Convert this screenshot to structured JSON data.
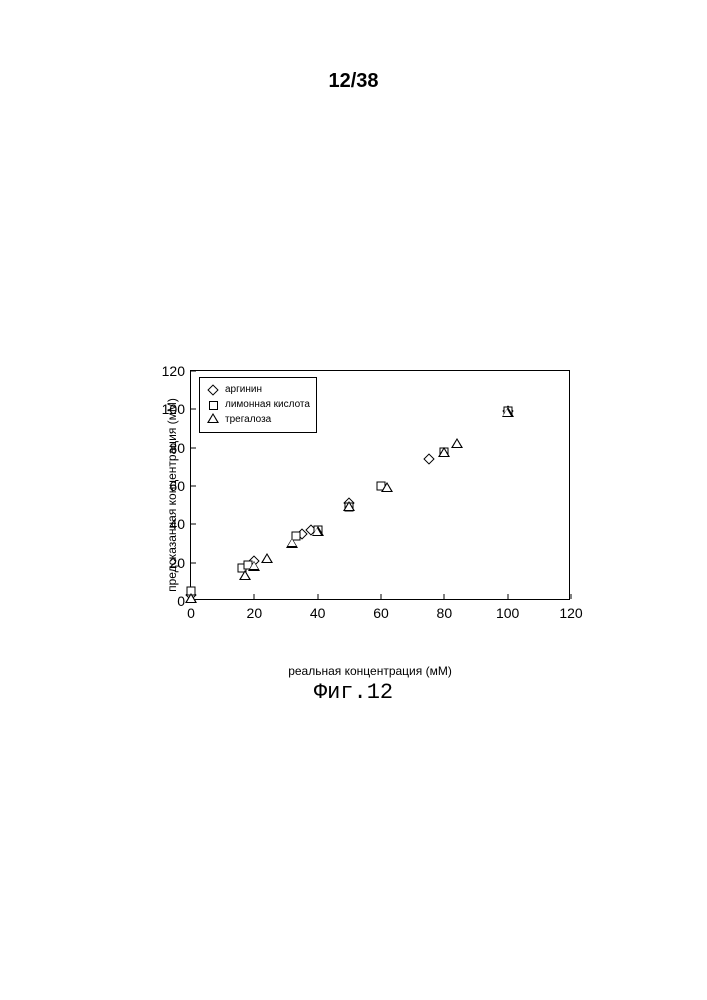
{
  "page_header": "12/38",
  "figure_caption": "Фиг.12",
  "chart": {
    "type": "scatter",
    "xlabel": "реальная концентрация (мМ)",
    "ylabel": "предсказанная концентрация (мМ)",
    "xlim": [
      0,
      120
    ],
    "ylim": [
      0,
      120
    ],
    "xtick_step": 20,
    "ytick_step": 20,
    "x_ticks": [
      0,
      20,
      40,
      60,
      80,
      100,
      120
    ],
    "y_ticks": [
      0,
      20,
      40,
      60,
      80,
      100,
      120
    ],
    "background_color": "#ffffff",
    "axis_color": "#000000",
    "tick_fontsize": 14,
    "label_fontsize": 12,
    "marker_size": 10,
    "marker_stroke": "#000000",
    "marker_fill": "#ffffff",
    "legend": {
      "position": "top-left",
      "border_color": "#000000",
      "items": [
        {
          "label": "аргинин",
          "marker": "diamond"
        },
        {
          "label": "лимонная кислота",
          "marker": "square"
        },
        {
          "label": "трегалоза",
          "marker": "triangle"
        }
      ]
    },
    "series": [
      {
        "name": "аргинин",
        "marker": "diamond",
        "points": [
          {
            "x": 0,
            "y": 3
          },
          {
            "x": 20,
            "y": 21
          },
          {
            "x": 35,
            "y": 35
          },
          {
            "x": 38,
            "y": 37
          },
          {
            "x": 50,
            "y": 51
          },
          {
            "x": 75,
            "y": 74
          },
          {
            "x": 100,
            "y": 99
          }
        ]
      },
      {
        "name": "лимонная кислота",
        "marker": "square",
        "points": [
          {
            "x": 0,
            "y": 5
          },
          {
            "x": 16,
            "y": 17
          },
          {
            "x": 18,
            "y": 19
          },
          {
            "x": 33,
            "y": 34
          },
          {
            "x": 40,
            "y": 37
          },
          {
            "x": 50,
            "y": 49
          },
          {
            "x": 60,
            "y": 60
          },
          {
            "x": 80,
            "y": 78
          },
          {
            "x": 100,
            "y": 99
          }
        ]
      },
      {
        "name": "трегалоза",
        "marker": "triangle",
        "points": [
          {
            "x": 0,
            "y": 1
          },
          {
            "x": 17,
            "y": 13
          },
          {
            "x": 20,
            "y": 18
          },
          {
            "x": 24,
            "y": 22
          },
          {
            "x": 32,
            "y": 30
          },
          {
            "x": 40,
            "y": 36
          },
          {
            "x": 50,
            "y": 49
          },
          {
            "x": 62,
            "y": 59
          },
          {
            "x": 80,
            "y": 77
          },
          {
            "x": 84,
            "y": 82
          },
          {
            "x": 100,
            "y": 98
          }
        ]
      }
    ]
  }
}
